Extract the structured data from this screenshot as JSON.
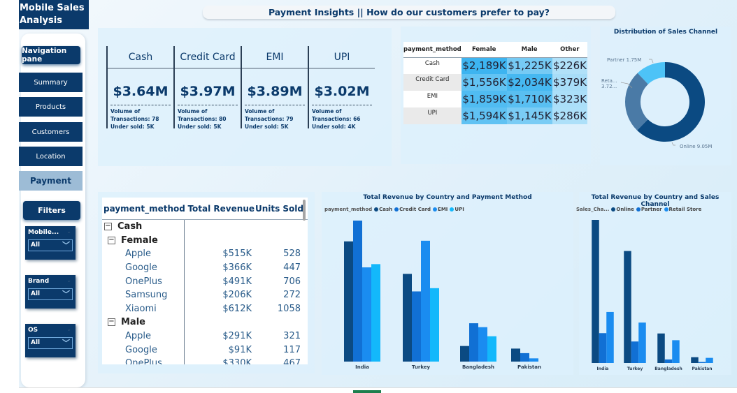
{
  "app": {
    "title": "Mobile Sales Analysis"
  },
  "header": {
    "title": "Payment Insights ||  How do our customers prefer to pay?"
  },
  "sidebar": {
    "nav_header": "Navigation pane",
    "items": [
      {
        "label": "Summary"
      },
      {
        "label": "Products"
      },
      {
        "label": "Customers"
      },
      {
        "label": "Location"
      },
      {
        "label": "Payment",
        "active": true
      }
    ],
    "filters_header": "Filters",
    "slicers": [
      {
        "label": "Mobile...",
        "value": "All"
      },
      {
        "label": "Brand",
        "value": "All"
      },
      {
        "label": "OS",
        "value": "All"
      }
    ]
  },
  "kpis": [
    {
      "name": "Cash",
      "value": "$3.64M",
      "line1": "Volume of",
      "line2": "Transactions: 78",
      "line3": "Under sold: 5K"
    },
    {
      "name": "Credit Card",
      "value": "$3.97M",
      "line1": "Volume of",
      "line2": "Transactions: 80",
      "line3": "Under sold: 5K"
    },
    {
      "name": "EMI",
      "value": "$3.89M",
      "line1": "Volume of",
      "line2": "Transactions: 79",
      "line3": "Under sold: 5K"
    },
    {
      "name": "UPI",
      "value": "$3.02M",
      "line1": "Volume of",
      "line2": "Transactions: 66",
      "line3": "Under sold: 4K"
    }
  ],
  "matrix": {
    "headers": [
      "payment_method",
      "Female",
      "Male",
      "Other"
    ],
    "rows": [
      {
        "label": "Cash",
        "values": [
          "$2,189K",
          "$1,225K",
          "$226K"
        ],
        "raw": [
          2189,
          1225,
          226
        ]
      },
      {
        "label": "Credit Card",
        "values": [
          "$1,556K",
          "$2,034K",
          "$379K"
        ],
        "raw": [
          1556,
          2034,
          379
        ]
      },
      {
        "label": "EMI",
        "values": [
          "$1,859K",
          "$1,710K",
          "$323K"
        ],
        "raw": [
          1859,
          1710,
          323
        ]
      },
      {
        "label": "UPI",
        "values": [
          "$1,594K",
          "$1,145K",
          "$286K"
        ],
        "raw": [
          1594,
          1145,
          286
        ]
      }
    ]
  },
  "table": {
    "headers": [
      "payment_method",
      "Total Revenue",
      "Units Sold"
    ],
    "rows": [
      {
        "level": 0,
        "label": "Cash",
        "rev": "",
        "units": ""
      },
      {
        "level": 1,
        "label": "Female",
        "rev": "",
        "units": ""
      },
      {
        "level": 2,
        "label": "Apple",
        "rev": "$515K",
        "units": "528"
      },
      {
        "level": 2,
        "label": "Google",
        "rev": "$366K",
        "units": "447"
      },
      {
        "level": 2,
        "label": "OnePlus",
        "rev": "$491K",
        "units": "706"
      },
      {
        "level": 2,
        "label": "Samsung",
        "rev": "$206K",
        "units": "272"
      },
      {
        "level": 2,
        "label": "Xiaomi",
        "rev": "$612K",
        "units": "1058"
      },
      {
        "level": 1,
        "label": "Male",
        "rev": "",
        "units": ""
      },
      {
        "level": 2,
        "label": "Apple",
        "rev": "$291K",
        "units": "321"
      },
      {
        "level": 2,
        "label": "Google",
        "rev": "$91K",
        "units": "117"
      },
      {
        "level": 2,
        "label": "OnePlus",
        "rev": "$330K",
        "units": "467"
      }
    ]
  },
  "colors": {
    "navy": "#0b3a6b",
    "cash": "#0b4a82",
    "credit": "#1170d4",
    "emi": "#1a8cf0",
    "upi": "#13b8fb",
    "retail": "#4a7aa6",
    "partner": "#4dc3f7"
  },
  "chart_data": [
    {
      "type": "pie",
      "title": "Distribution of Sales Channel",
      "labels": [
        "Online",
        "Retail Store",
        "Partner"
      ],
      "values": [
        9.05,
        3.72,
        1.75
      ],
      "display_labels": [
        "Online 9.05M",
        "Reta...",
        "3.72...",
        "Partner 1.75M"
      ],
      "colors": [
        "#0b4a82",
        "#4a7aa6",
        "#4dc3f7"
      ]
    },
    {
      "type": "bar",
      "title": "Total Revenue by Country and Payment Method",
      "legend_title": "payment_method",
      "categories": [
        "India",
        "Turkey",
        "Bangladesh",
        "Pakistan"
      ],
      "unit": "$M (estimated)",
      "series": [
        {
          "name": "Cash",
          "color": "#0b4a82",
          "values": [
            1.85,
            1.35,
            0.24,
            0.2
          ]
        },
        {
          "name": "Credit Card",
          "color": "#1170d4",
          "values": [
            2.17,
            1.08,
            0.59,
            0.13
          ]
        },
        {
          "name": "EMI",
          "color": "#1a8cf0",
          "values": [
            1.45,
            1.86,
            0.53,
            0.05
          ]
        },
        {
          "name": "UPI",
          "color": "#13b8fb",
          "values": [
            1.5,
            1.13,
            0.39,
            0
          ]
        }
      ],
      "legend": "top-left"
    },
    {
      "type": "bar",
      "title": "Total Revenue by Country and Sales Channel",
      "legend_title": "Sales_Cha...",
      "categories": [
        "India",
        "Turkey",
        "Bangladesh",
        "Pakistan"
      ],
      "unit": "$M (estimated)",
      "series": [
        {
          "name": "Online",
          "color": "#0b4a82",
          "values": [
            4.46,
            3.49,
            0.92,
            0.18
          ]
        },
        {
          "name": "Partner",
          "color": "#1170d4",
          "values": [
            0.93,
            0.67,
            0.11,
            0.03
          ]
        },
        {
          "name": "Retail Store",
          "color": "#1a8cf0",
          "values": [
            1.59,
            1.26,
            0.71,
            0.16
          ]
        }
      ],
      "legend": "top-left"
    }
  ]
}
